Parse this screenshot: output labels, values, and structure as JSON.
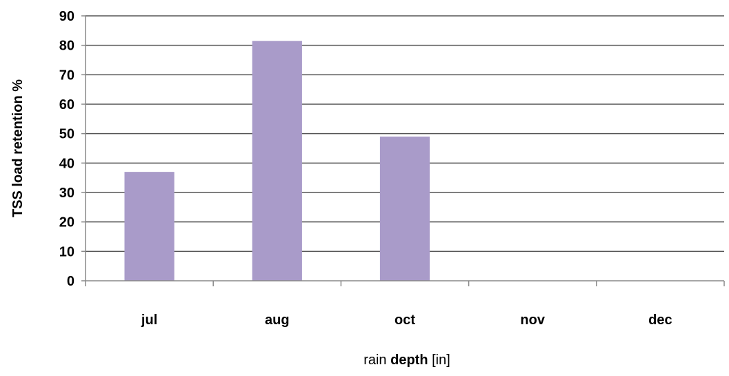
{
  "chart_data": {
    "type": "bar",
    "categories": [
      "jul",
      "aug",
      "oct",
      "nov",
      "dec"
    ],
    "values": [
      37,
      81.5,
      49,
      0,
      0
    ],
    "ylim": [
      0,
      90
    ],
    "ytick_values": [
      0,
      10,
      20,
      30,
      40,
      50,
      60,
      70,
      80,
      90
    ],
    "ylabel": "TSS load retention %",
    "xlabel_parts": [
      "rain ",
      "depth",
      " [in]"
    ],
    "grid": true,
    "bar_color": "#a99bc9",
    "legend": "none"
  }
}
